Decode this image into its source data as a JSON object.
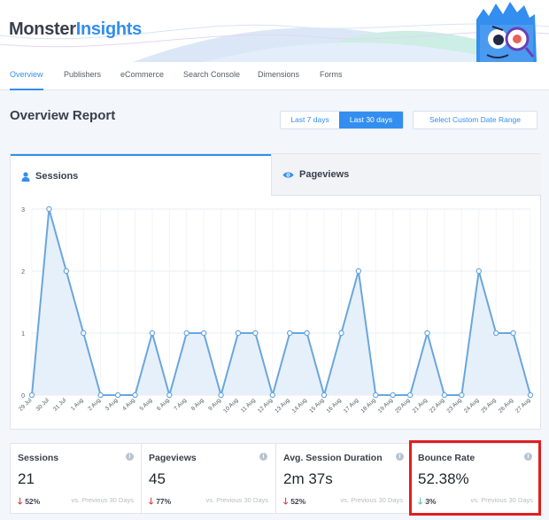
{
  "brand": {
    "monster": "Monster",
    "insights": "Insights",
    "accent": "#338eef"
  },
  "nav": {
    "tabs": [
      {
        "label": "Overview",
        "active": true
      },
      {
        "label": "Publishers",
        "active": false
      },
      {
        "label": "eCommerce",
        "active": false
      },
      {
        "label": "Search Console",
        "active": false
      },
      {
        "label": "Dimensions",
        "active": false
      },
      {
        "label": "Forms",
        "active": false
      }
    ]
  },
  "page": {
    "title": "Overview Report"
  },
  "date_range": {
    "options": [
      {
        "label": "Last 7 days",
        "selected": false
      },
      {
        "label": "Last 30 days",
        "selected": true
      }
    ],
    "custom_label": "Select Custom Date Range"
  },
  "chart_tabs": [
    {
      "label": "Sessions",
      "icon": "user-icon",
      "active": true
    },
    {
      "label": "Pageviews",
      "icon": "eye-icon",
      "active": false
    }
  ],
  "chart_data": {
    "type": "area",
    "categories": [
      "29 Jul",
      "30 Jul",
      "31 Jul",
      "1 Aug",
      "2 Aug",
      "3 Aug",
      "4 Aug",
      "5 Aug",
      "6 Aug",
      "7 Aug",
      "8 Aug",
      "9 Aug",
      "10 Aug",
      "11 Aug",
      "12 Aug",
      "13 Aug",
      "14 Aug",
      "15 Aug",
      "16 Aug",
      "17 Aug",
      "18 Aug",
      "19 Aug",
      "20 Aug",
      "21 Aug",
      "22 Aug",
      "23 Aug",
      "24 Aug",
      "25 Aug",
      "26 Aug",
      "27 Aug"
    ],
    "series": [
      {
        "values": [
          0,
          3,
          2,
          1,
          0,
          0,
          0,
          1,
          0,
          1,
          1,
          0,
          1,
          1,
          0,
          1,
          1,
          0,
          1,
          2,
          0,
          0,
          0,
          1,
          0,
          0,
          2,
          1,
          1,
          0
        ],
        "color": "#6aa6dd",
        "fill": "#e6f0fa"
      }
    ],
    "yticks": [
      0,
      1,
      2,
      3
    ],
    "ylim": [
      0,
      3
    ],
    "grid": true
  },
  "metrics": [
    {
      "label": "Sessions",
      "value": "21",
      "change": "52%",
      "direction": "down",
      "color": "#d73638",
      "compare": "vs. Previous 30 Days"
    },
    {
      "label": "Pageviews",
      "value": "45",
      "change": "77%",
      "direction": "down",
      "color": "#d73638",
      "compare": "vs. Previous 30 Days"
    },
    {
      "label": "Avg. Session Duration",
      "value": "2m 37s",
      "change": "52%",
      "direction": "down",
      "color": "#d73638",
      "compare": "vs. Previous 30 Days"
    },
    {
      "label": "Bounce Rate",
      "value": "52.38%",
      "change": "3%",
      "direction": "down",
      "color": "#5cc0a5",
      "compare": "vs. Previous 30 Days"
    }
  ],
  "icons": {
    "info": "info-icon",
    "arrow_down": "arrow-down-icon"
  }
}
